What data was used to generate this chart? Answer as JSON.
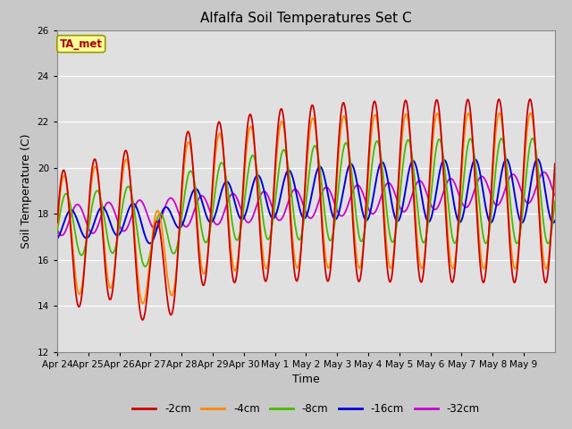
{
  "title": "Alfalfa Soil Temperatures Set C",
  "xlabel": "Time",
  "ylabel": "Soil Temperature (C)",
  "ylim": [
    12,
    26
  ],
  "yticks": [
    12,
    14,
    16,
    18,
    20,
    22,
    24,
    26
  ],
  "fig_facecolor": "#c8c8c8",
  "plot_facecolor": "#e0e0e0",
  "colors": {
    "-2cm": "#cc0000",
    "-4cm": "#ff8800",
    "-8cm": "#44bb00",
    "-16cm": "#0000dd",
    "-32cm": "#cc00cc"
  },
  "tick_labels": [
    "Apr 24",
    "Apr 25",
    "Apr 26",
    "Apr 27",
    "Apr 28",
    "Apr 29",
    "Apr 30",
    "May 1",
    "May 2",
    "May 3",
    "May 4",
    "May 5",
    "May 6",
    "May 7",
    "May 8",
    "May 9"
  ],
  "n_days": 16,
  "pts_per_day": 48,
  "annotation_text": "TA_met",
  "annotation_bg": "#ffff99",
  "annotation_border": "#999900"
}
